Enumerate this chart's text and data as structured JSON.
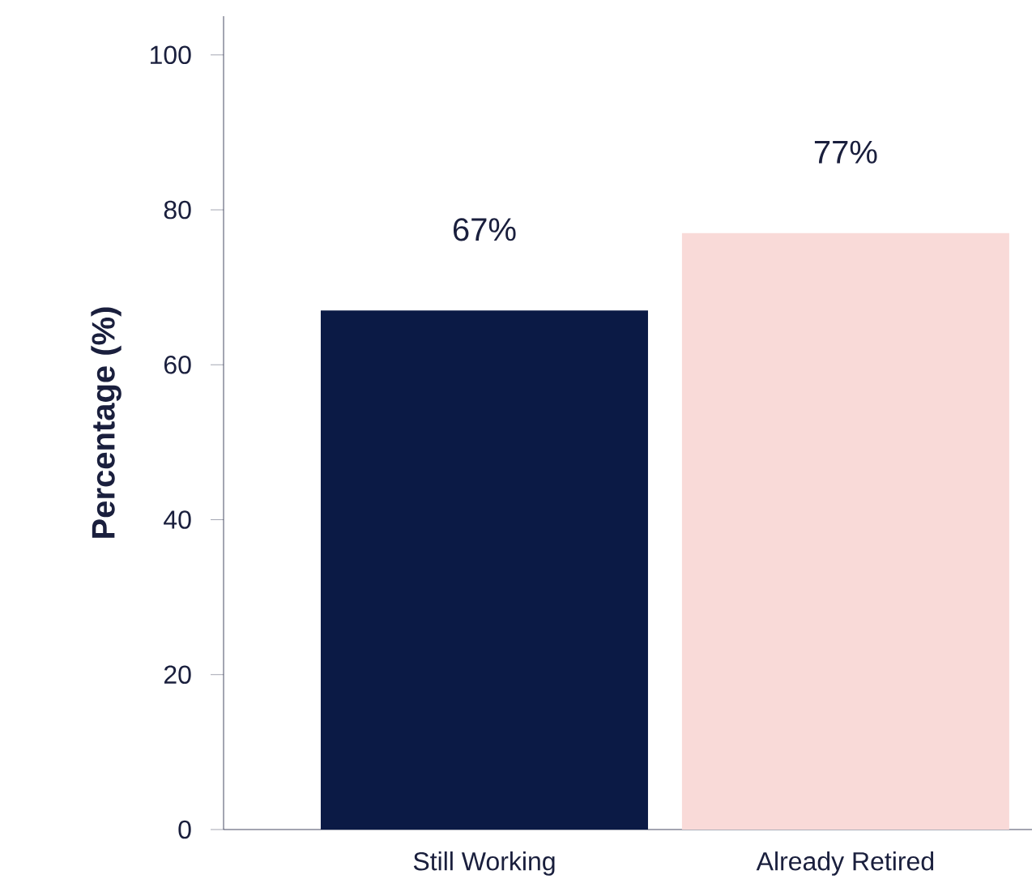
{
  "chart_data": {
    "type": "bar",
    "ylabel": "Percentage (%)",
    "categories": [
      "Still Working",
      "Already Retired"
    ],
    "values": [
      67,
      77
    ],
    "value_labels": [
      "67%",
      "77%"
    ],
    "colors": [
      "#0b1a45",
      "#f9dad8"
    ],
    "ylim": [
      0,
      105
    ],
    "yticks": [
      0,
      20,
      40,
      60,
      80,
      100
    ]
  }
}
